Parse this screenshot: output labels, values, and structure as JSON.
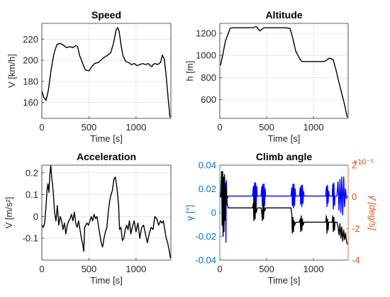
{
  "chart_data": [
    {
      "type": "line",
      "title": "Speed",
      "xlabel": "Time [s]",
      "ylabel": "V [km/h]",
      "xlim": [
        0,
        1370
      ],
      "ylim": [
        145,
        235
      ],
      "xticks": [
        0,
        500,
        1000
      ],
      "yticks": [
        160,
        180,
        200,
        220
      ],
      "grid": true,
      "series": [
        {
          "color": "#000000",
          "x": [
            0,
            20,
            45,
            70,
            100,
            130,
            160,
            190,
            220,
            260,
            300,
            330,
            360,
            380,
            400,
            430,
            460,
            500,
            530,
            560,
            600,
            650,
            700,
            730,
            760,
            780,
            790,
            805,
            820,
            840,
            860,
            890,
            920,
            950,
            980,
            1010,
            1040,
            1070,
            1100,
            1130,
            1150,
            1170,
            1180,
            1200,
            1230,
            1260,
            1280,
            1300,
            1320,
            1340,
            1360
          ],
          "y": [
            171,
            165,
            162,
            172,
            192,
            207,
            215,
            216,
            215,
            212,
            213,
            212,
            214,
            213,
            205,
            198,
            191,
            190,
            194,
            197,
            198,
            202,
            205,
            207,
            216,
            225,
            229,
            231,
            228,
            215,
            205,
            199,
            198,
            196,
            197,
            195,
            196,
            197,
            196,
            197,
            195,
            194,
            196,
            197,
            196,
            198,
            205,
            201,
            185,
            165,
            146
          ]
        }
      ]
    },
    {
      "type": "line",
      "title": "Altitude",
      "xlabel": "Time [s]",
      "ylabel": "h [m]",
      "xlim": [
        0,
        1370
      ],
      "ylim": [
        430,
        1290
      ],
      "xticks": [
        0,
        500,
        1000
      ],
      "yticks": [
        600,
        800,
        1000,
        1200
      ],
      "grid": true,
      "series": [
        {
          "color": "#000000",
          "x": [
            0,
            10,
            30,
            60,
            90,
            110,
            130,
            200,
            300,
            360,
            390,
            410,
            430,
            450,
            470,
            500,
            600,
            700,
            750,
            780,
            810,
            840,
            860,
            880,
            900,
            950,
            1000,
            1050,
            1100,
            1130,
            1150,
            1170,
            1190,
            1210,
            1240,
            1270,
            1300,
            1330,
            1360
          ],
          "y": [
            910,
            920,
            1000,
            1130,
            1200,
            1245,
            1250,
            1250,
            1250,
            1252,
            1262,
            1240,
            1222,
            1238,
            1250,
            1250,
            1250,
            1250,
            1245,
            1150,
            1040,
            990,
            960,
            945,
            945,
            945,
            945,
            945,
            945,
            950,
            965,
            975,
            970,
            960,
            870,
            760,
            660,
            560,
            440
          ]
        }
      ]
    },
    {
      "type": "line",
      "title": "Acceleration",
      "xlabel": "Time [s]",
      "ylabel": "V̇ [m/s²]",
      "xlim": [
        0,
        1370
      ],
      "ylim": [
        -0.2,
        0.235
      ],
      "xticks": [
        0,
        500,
        1000
      ],
      "yticks": [
        -0.1,
        0,
        0.1,
        0.2
      ],
      "grid": true,
      "series": [
        {
          "color": "#000000",
          "x": [
            0,
            15,
            30,
            45,
            55,
            65,
            75,
            85,
            95,
            105,
            115,
            125,
            135,
            150,
            165,
            180,
            195,
            210,
            225,
            240,
            255,
            270,
            285,
            300,
            315,
            330,
            345,
            360,
            375,
            390,
            405,
            420,
            435,
            445,
            455,
            465,
            480,
            495,
            510,
            525,
            540,
            555,
            570,
            585,
            600,
            615,
            630,
            645,
            660,
            675,
            690,
            705,
            720,
            735,
            750,
            765,
            780,
            795,
            805,
            815,
            825,
            840,
            855,
            870,
            885,
            900,
            915,
            930,
            945,
            960,
            980,
            1000,
            1020,
            1040,
            1060,
            1080,
            1100,
            1120,
            1140,
            1160,
            1180,
            1200,
            1220,
            1240,
            1260,
            1275,
            1290,
            1305,
            1320,
            1335,
            1350,
            1365
          ],
          "y": [
            -0.04,
            -0.05,
            -0.03,
            0.05,
            0.12,
            0.15,
            0.11,
            0.19,
            0.235,
            0.18,
            0.14,
            0.09,
            0.02,
            -0.02,
            0.05,
            -0.04,
            0.0,
            -0.02,
            -0.06,
            -0.03,
            -0.08,
            -0.04,
            -0.02,
            -0.01,
            0.01,
            -0.02,
            0.02,
            -0.03,
            -0.05,
            -0.02,
            -0.06,
            -0.1,
            -0.13,
            -0.16,
            -0.05,
            -0.04,
            -0.03,
            -0.04,
            -0.02,
            0.0,
            -0.02,
            0.01,
            -0.01,
            0.0,
            -0.04,
            -0.08,
            -0.12,
            -0.14,
            -0.1,
            -0.07,
            -0.05,
            0.02,
            0.07,
            0.1,
            0.12,
            0.17,
            0.18,
            0.14,
            0.1,
            0.05,
            -0.06,
            -0.05,
            -0.11,
            -0.1,
            -0.06,
            -0.04,
            -0.06,
            -0.02,
            -0.08,
            -0.05,
            -0.02,
            -0.07,
            -0.03,
            -0.1,
            -0.05,
            -0.04,
            -0.08,
            -0.12,
            -0.08,
            -0.05,
            -0.06,
            0.0,
            -0.01,
            -0.04,
            -0.02,
            -0.03,
            -0.02,
            -0.06,
            -0.1,
            -0.12,
            -0.15,
            -0.19
          ]
        }
      ]
    },
    {
      "type": "line",
      "title": "Climb angle",
      "xlabel": "Time [s]",
      "ylabel": "γ [°]",
      "ylabel_right": "γ̂̇ [deg/s]",
      "y_right_exponent": "×10⁻³",
      "xlim": [
        0,
        1370
      ],
      "ylim": [
        -0.04,
        0.04
      ],
      "ylim_right": [
        -0.004,
        0.002
      ],
      "xticks": [
        0,
        500,
        1000
      ],
      "yticks": [
        -0.04,
        -0.02,
        0,
        0.02,
        0.04
      ],
      "yticks_right_labels": [
        "-4",
        "-2",
        "0",
        "2"
      ],
      "grid": false,
      "colors": {
        "left": "#0072bd",
        "right": "#d95319"
      },
      "series": [
        {
          "axis": "left",
          "color": "#0000ff",
          "x": [
            0,
            10,
            20,
            25,
            30,
            35,
            40,
            45,
            50,
            55,
            60,
            65,
            70,
            75,
            80,
            90,
            350,
            358,
            364,
            370,
            376,
            382,
            388,
            394,
            400,
            420,
            440,
            448,
            454,
            460,
            466,
            472,
            478,
            484,
            490,
            760,
            768,
            774,
            780,
            786,
            792,
            798,
            804,
            810,
            830,
            850,
            858,
            864,
            870,
            876,
            882,
            888,
            894,
            900,
            1130,
            1138,
            1144,
            1150,
            1156,
            1162,
            1168,
            1200,
            1206,
            1212,
            1218,
            1224,
            1230,
            1250,
            1262,
            1272,
            1282,
            1292,
            1302,
            1312,
            1322,
            1332,
            1342,
            1352,
            1362
          ],
          "y": [
            0.014,
            0.014,
            0.03,
            -0.005,
            0.028,
            0.0,
            0.03,
            -0.01,
            0.03,
            0.0,
            0.025,
            -0.025,
            0.027,
            0.014,
            0.012,
            0.014,
            0.014,
            0.022,
            0.005,
            0.025,
            0.002,
            0.025,
            0.005,
            0.022,
            0.014,
            0.014,
            0.014,
            0.022,
            0.006,
            0.024,
            0.004,
            0.024,
            0.006,
            0.02,
            0.014,
            0.014,
            0.021,
            0.006,
            0.024,
            0.004,
            0.024,
            0.006,
            0.02,
            0.014,
            0.014,
            0.014,
            0.021,
            0.007,
            0.023,
            0.005,
            0.023,
            0.008,
            0.018,
            0.014,
            0.014,
            0.022,
            0.005,
            0.023,
            0.008,
            0.018,
            0.014,
            0.014,
            0.024,
            0.003,
            0.025,
            0.006,
            0.014,
            0.014,
            0.026,
            0.002,
            0.028,
            0.0,
            0.03,
            -0.002,
            0.03,
            0.005,
            0.02,
            0.012,
            0.014
          ]
        },
        {
          "axis": "right",
          "color": "#000000",
          "x": [
            0,
            10,
            20,
            25,
            30,
            35,
            40,
            45,
            50,
            55,
            60,
            65,
            70,
            75,
            80,
            90,
            350,
            358,
            364,
            370,
            376,
            382,
            388,
            400,
            440,
            448,
            454,
            460,
            466,
            472,
            478,
            490,
            760,
            768,
            774,
            780,
            786,
            792,
            798,
            810,
            850,
            858,
            864,
            870,
            876,
            882,
            888,
            900,
            1130,
            1138,
            1144,
            1150,
            1156,
            1162,
            1168,
            1200,
            1206,
            1212,
            1218,
            1224,
            1230,
            1250,
            1262,
            1272,
            1282,
            1292,
            1302,
            1312,
            1322,
            1332,
            1342,
            1352,
            1362
          ],
          "y": [
            0.0,
            0.0,
            0.0016,
            -0.0018,
            0.0016,
            -0.0025,
            0.0012,
            -0.0022,
            0.0014,
            -0.0015,
            0.0006,
            -0.0005,
            0.0005,
            -0.0002,
            -0.0005,
            -0.0007,
            -0.0007,
            -0.0004,
            -0.0015,
            0.0,
            -0.0014,
            -0.0004,
            -0.001,
            -0.0007,
            -0.0007,
            -0.001,
            -0.0015,
            -0.0004,
            -0.0014,
            -0.0006,
            -0.0009,
            -0.0007,
            -0.0007,
            -0.0011,
            -0.0023,
            -0.0013,
            -0.0022,
            -0.0015,
            -0.0018,
            -0.0016,
            -0.0016,
            -0.0014,
            -0.0022,
            -0.0012,
            -0.0021,
            -0.0014,
            -0.0018,
            -0.0016,
            -0.0016,
            -0.0012,
            -0.0023,
            -0.0014,
            -0.0021,
            -0.0016,
            -0.0016,
            -0.0016,
            -0.0012,
            -0.0022,
            -0.0013,
            -0.0021,
            -0.0016,
            -0.0016,
            -0.0019,
            -0.0024,
            -0.0017,
            -0.0026,
            -0.0019,
            -0.0028,
            -0.0021,
            -0.0027,
            -0.0023,
            -0.0028,
            -0.003
          ]
        }
      ]
    }
  ]
}
